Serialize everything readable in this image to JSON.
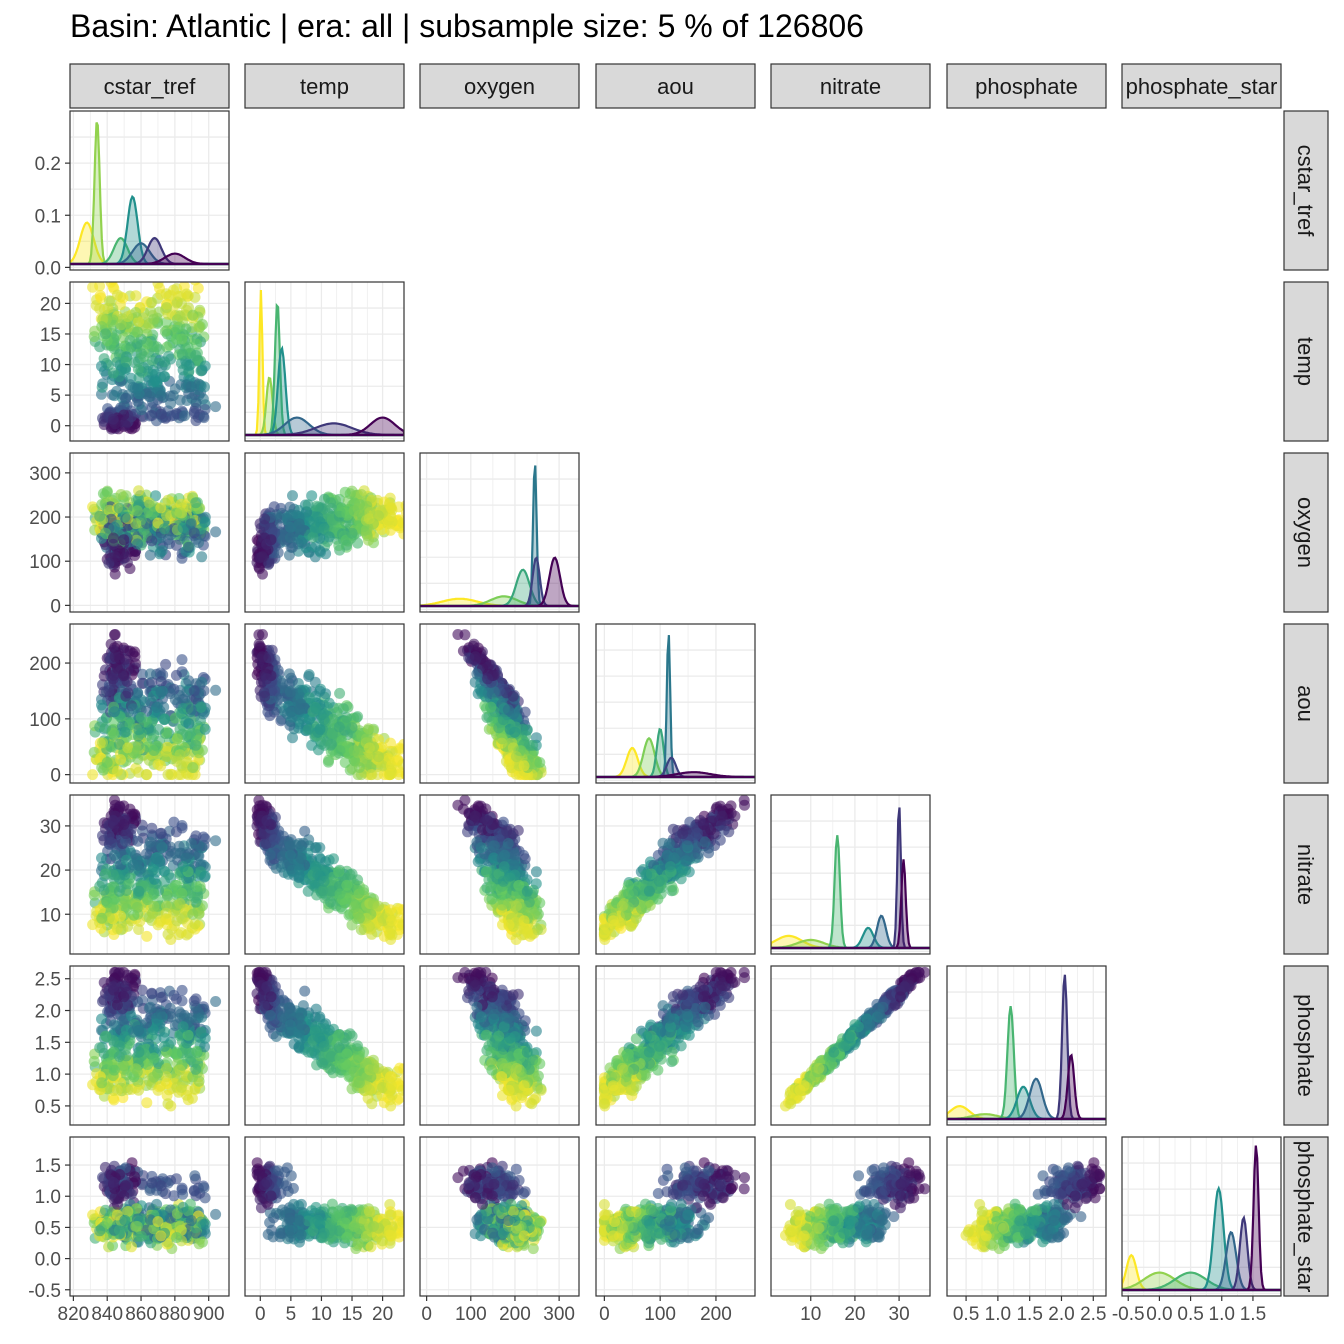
{
  "title": "Basin: Atlantic | era: all | subsample size: 5 % of 126806",
  "chart_data": {
    "type": "scatter",
    "layout": "pairs-matrix",
    "variables": [
      "cstar_tref",
      "temp",
      "oxygen",
      "aou",
      "nitrate",
      "phosphate",
      "phosphate_star"
    ],
    "color_scale": [
      "#440154",
      "#3b528b",
      "#21908c",
      "#5dc863",
      "#fde725"
    ],
    "point_alpha": 0.6,
    "grid": true,
    "ranges": {
      "cstar_tref": [
        818,
        912
      ],
      "temp": [
        -2.5,
        23.5
      ],
      "oxygen": [
        -15,
        345
      ],
      "aou": [
        -15,
        270
      ],
      "nitrate": [
        1,
        37
      ],
      "phosphate": [
        0.2,
        2.7
      ],
      "phosphate_star": [
        -0.6,
        1.95
      ]
    },
    "ticks": {
      "cstar_tref": {
        "values": [
          820,
          840,
          860,
          880,
          900
        ],
        "labels": [
          "820",
          "840",
          "860",
          "880",
          "900"
        ]
      },
      "temp": {
        "values": [
          0,
          5,
          10,
          15,
          20
        ],
        "labels": [
          "0",
          "5",
          "10",
          "15",
          "20"
        ]
      },
      "oxygen": {
        "values": [
          0,
          100,
          200,
          300
        ],
        "labels": [
          "0",
          "100",
          "200",
          "300"
        ]
      },
      "aou": {
        "values": [
          0,
          100,
          200
        ],
        "labels": [
          "0",
          "100",
          "200"
        ]
      },
      "nitrate": {
        "values": [
          10,
          20,
          30
        ],
        "labels": [
          "10",
          "20",
          "30"
        ]
      },
      "phosphate": {
        "values": [
          0.5,
          1.0,
          1.5,
          2.0,
          2.5
        ],
        "labels": [
          "0.5",
          "1.0",
          "1.5",
          "2.0",
          "2.5"
        ]
      },
      "phosphate_star": {
        "values": [
          -0.5,
          0.0,
          0.5,
          1.0,
          1.5
        ],
        "labels": [
          "-0.5",
          "0.0",
          "0.5",
          "1.0",
          "1.5"
        ]
      }
    },
    "diagonal_y_ticks": {
      "values": [
        0.0,
        0.1,
        0.2
      ],
      "labels": [
        "0.0",
        "0.1",
        "0.2"
      ],
      "range": [
        -0.005,
        0.3
      ]
    },
    "density_peaks": {
      "cstar_tref": [
        [
          828,
          4,
          0.08
        ],
        [
          834,
          1.5,
          0.28
        ],
        [
          848,
          4,
          0.05
        ],
        [
          855,
          3,
          0.13
        ],
        [
          860,
          5,
          0.04
        ],
        [
          868,
          4,
          0.05
        ],
        [
          880,
          6,
          0.02
        ]
      ],
      "temp": [
        [
          0.1,
          0.25,
          0.25
        ],
        [
          1.5,
          0.5,
          0.1
        ],
        [
          2.8,
          0.4,
          0.23
        ],
        [
          3.5,
          0.6,
          0.15
        ],
        [
          6,
          2,
          0.03
        ],
        [
          12,
          3,
          0.02
        ],
        [
          20,
          2,
          0.03
        ]
      ],
      "oxygen": [
        [
          75,
          40,
          0.003
        ],
        [
          175,
          30,
          0.004
        ],
        [
          218,
          15,
          0.015
        ],
        [
          245,
          4,
          0.06
        ],
        [
          248,
          8,
          0.02
        ],
        [
          290,
          12,
          0.02
        ]
      ],
      "aou": [
        [
          50,
          10,
          0.03
        ],
        [
          80,
          10,
          0.04
        ],
        [
          100,
          6,
          0.05
        ],
        [
          115,
          3,
          0.15
        ],
        [
          120,
          8,
          0.02
        ],
        [
          160,
          30,
          0.005
        ]
      ],
      "nitrate": [
        [
          5,
          3,
          0.03
        ],
        [
          10,
          3,
          0.02
        ],
        [
          16,
          0.6,
          0.28
        ],
        [
          23,
          1.2,
          0.05
        ],
        [
          26,
          1,
          0.08
        ],
        [
          30,
          0.4,
          0.36
        ],
        [
          31,
          0.5,
          0.22
        ]
      ],
      "phosphate": [
        [
          0.4,
          0.15,
          0.8
        ],
        [
          0.8,
          0.2,
          0.3
        ],
        [
          1.2,
          0.05,
          7
        ],
        [
          1.4,
          0.1,
          2
        ],
        [
          1.6,
          0.1,
          2.5
        ],
        [
          2.05,
          0.04,
          9
        ],
        [
          2.15,
          0.05,
          4
        ]
      ],
      "phosphate_star": [
        [
          -0.45,
          0.08,
          1.2
        ],
        [
          0.0,
          0.25,
          0.6
        ],
        [
          0.5,
          0.25,
          0.6
        ],
        [
          0.95,
          0.08,
          3.5
        ],
        [
          1.15,
          0.08,
          2
        ],
        [
          1.35,
          0.06,
          2.5
        ],
        [
          1.55,
          0.04,
          5
        ]
      ]
    }
  }
}
